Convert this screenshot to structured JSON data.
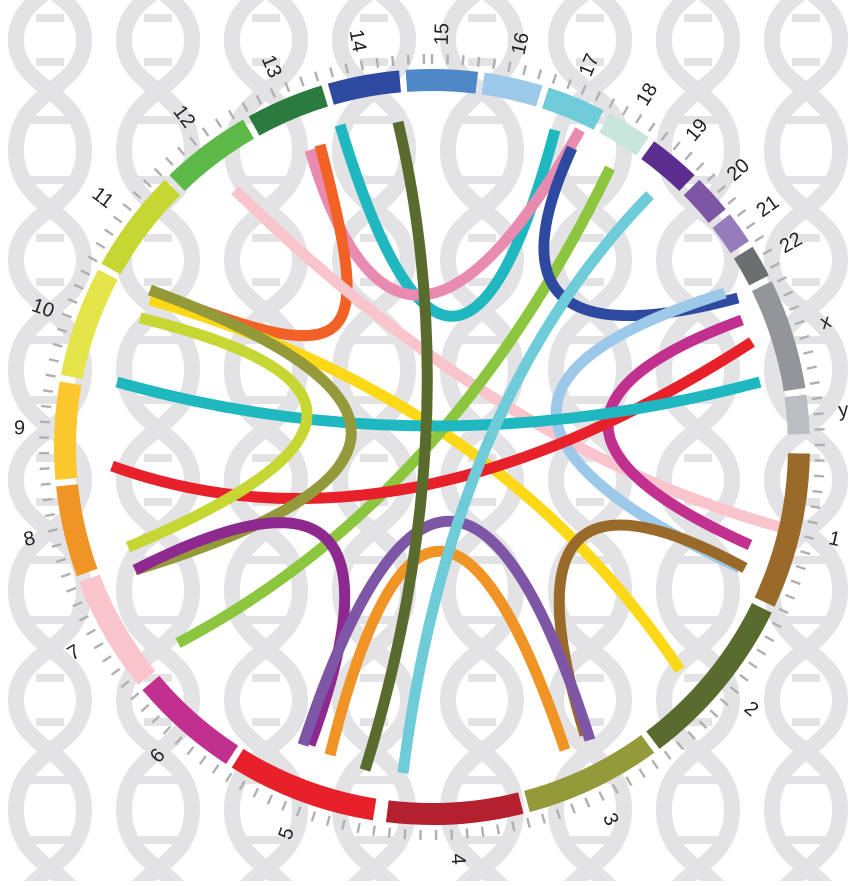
{
  "chromosomes": [
    {
      "label": "1",
      "color": "#9a6a2a"
    },
    {
      "label": "2",
      "color": "#5a6b2e"
    },
    {
      "label": "3",
      "color": "#949a3a"
    },
    {
      "label": "4",
      "color": "#b5202e"
    },
    {
      "label": "5",
      "color": "#e8202a"
    },
    {
      "label": "6",
      "color": "#c2308f"
    },
    {
      "label": "7",
      "color": "#f9c4cc"
    },
    {
      "label": "8",
      "color": "#f19426"
    },
    {
      "label": "9",
      "color": "#fcc82e"
    },
    {
      "label": "10",
      "color": "#e4e54a"
    },
    {
      "label": "11",
      "color": "#c6d632"
    },
    {
      "label": "12",
      "color": "#5cb947"
    },
    {
      "label": "13",
      "color": "#2b7a3e"
    },
    {
      "label": "14",
      "color": "#2d4aa0"
    },
    {
      "label": "15",
      "color": "#4f88c6"
    },
    {
      "label": "16",
      "color": "#9cc8ea"
    },
    {
      "label": "17",
      "color": "#6ecbd8"
    },
    {
      "label": "18",
      "color": "#c8e6dc"
    },
    {
      "label": "19",
      "color": "#5b2d8e"
    },
    {
      "label": "20",
      "color": "#7d56a5"
    },
    {
      "label": "21",
      "color": "#967cba"
    },
    {
      "label": "22",
      "color": "#6d6e70"
    },
    {
      "label": "x",
      "color": "#949599"
    },
    {
      "label": "y",
      "color": "#bcbdc0"
    }
  ]
}
